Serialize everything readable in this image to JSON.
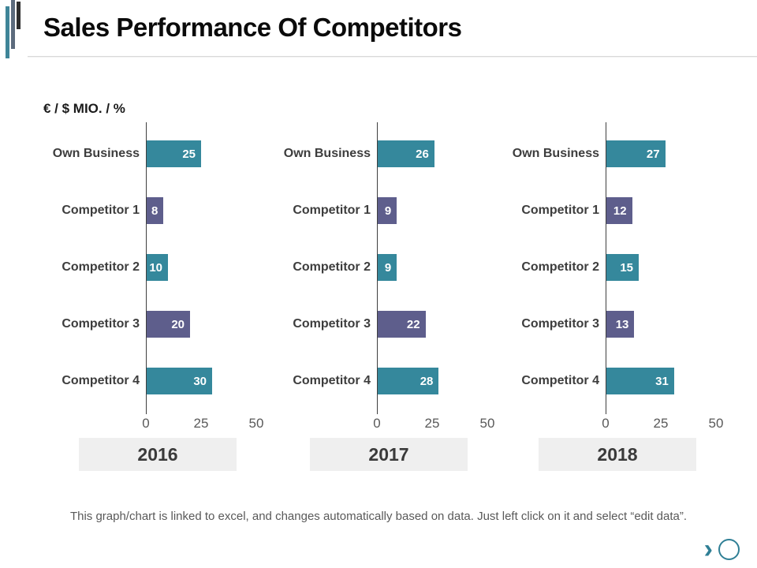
{
  "slide": {
    "title": "Sales Performance Of Competitors",
    "subtitle": "€ / $ MIO. / %",
    "footnote": "This graph/chart is linked to excel, and changes automatically based on data. Just left click on it and select “edit data”.",
    "colors": {
      "teal": "#35889C",
      "purple": "#5E5E8C",
      "axis": "#3F3F3F",
      "year_box_bg": "#EFEFEF",
      "accent_teal": "#2F7F95"
    }
  },
  "chart_data": [
    {
      "type": "bar",
      "orientation": "horizontal",
      "year": "2016",
      "categories": [
        "Own Business",
        "Competitor 1",
        "Competitor 2",
        "Competitor 3",
        "Competitor 4"
      ],
      "values": [
        25,
        8,
        10,
        20,
        30
      ],
      "bar_colors": [
        "teal",
        "purple",
        "teal",
        "purple",
        "teal"
      ],
      "xlim": [
        0,
        50
      ],
      "xticks": [
        0,
        25,
        50
      ]
    },
    {
      "type": "bar",
      "orientation": "horizontal",
      "year": "2017",
      "categories": [
        "Own Business",
        "Competitor 1",
        "Competitor 2",
        "Competitor 3",
        "Competitor 4"
      ],
      "values": [
        26,
        9,
        9,
        22,
        28
      ],
      "bar_colors": [
        "teal",
        "purple",
        "teal",
        "purple",
        "teal"
      ],
      "xlim": [
        0,
        50
      ],
      "xticks": [
        0,
        25,
        50
      ]
    },
    {
      "type": "bar",
      "orientation": "horizontal",
      "year": "2018",
      "categories": [
        "Own Business",
        "Competitor 1",
        "Competitor 2",
        "Competitor 3",
        "Competitor 4"
      ],
      "values": [
        27,
        12,
        15,
        13,
        31
      ],
      "bar_colors": [
        "teal",
        "purple",
        "teal",
        "purple",
        "teal"
      ],
      "xlim": [
        0,
        50
      ],
      "xticks": [
        0,
        25,
        50
      ]
    }
  ],
  "nav": {
    "chevron": "›"
  }
}
